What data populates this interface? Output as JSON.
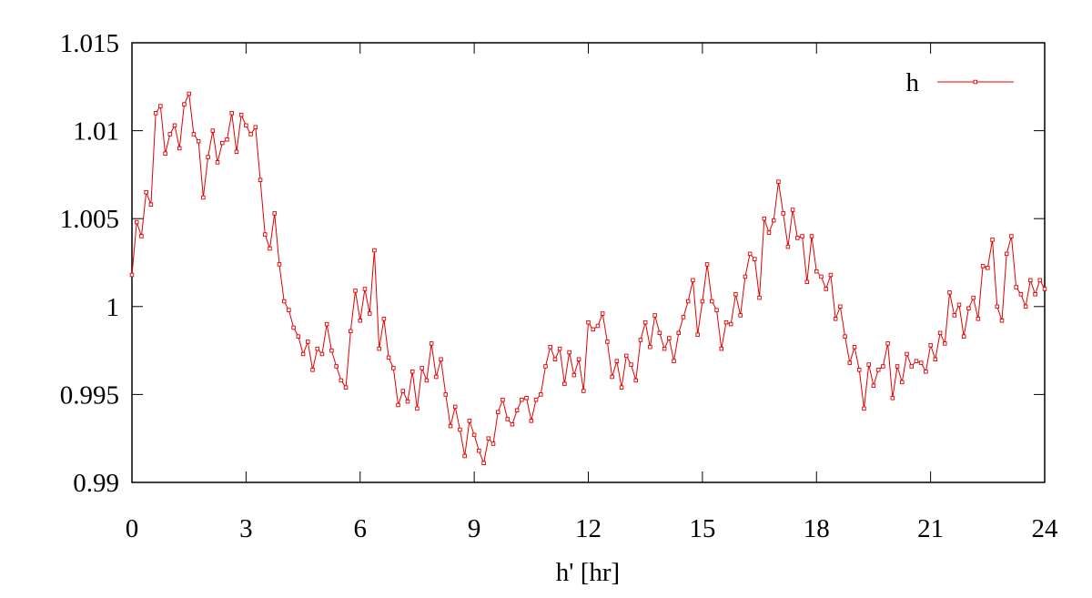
{
  "chart_data": {
    "type": "line",
    "xlabel": "h' [hr]",
    "x": [
      0,
      0.125,
      0.25,
      0.375,
      0.5,
      0.625,
      0.75,
      0.875,
      1,
      1.125,
      1.25,
      1.375,
      1.5,
      1.625,
      1.75,
      1.875,
      2,
      2.125,
      2.25,
      2.375,
      2.5,
      2.625,
      2.75,
      2.875,
      3,
      3.125,
      3.25,
      3.375,
      3.5,
      3.625,
      3.75,
      3.875,
      4,
      4.125,
      4.25,
      4.375,
      4.5,
      4.625,
      4.75,
      4.875,
      5,
      5.125,
      5.25,
      5.375,
      5.5,
      5.625,
      5.75,
      5.875,
      6,
      6.125,
      6.25,
      6.375,
      6.5,
      6.625,
      6.75,
      6.875,
      7,
      7.125,
      7.25,
      7.375,
      7.5,
      7.625,
      7.75,
      7.875,
      8,
      8.125,
      8.25,
      8.375,
      8.5,
      8.625,
      8.75,
      8.875,
      9,
      9.125,
      9.25,
      9.375,
      9.5,
      9.625,
      9.75,
      9.875,
      10,
      10.125,
      10.25,
      10.375,
      10.5,
      10.625,
      10.75,
      10.875,
      11,
      11.125,
      11.25,
      11.375,
      11.5,
      11.625,
      11.75,
      11.875,
      12,
      12.125,
      12.25,
      12.375,
      12.5,
      12.625,
      12.75,
      12.875,
      13,
      13.125,
      13.25,
      13.375,
      13.5,
      13.625,
      13.75,
      13.875,
      14,
      14.125,
      14.25,
      14.375,
      14.5,
      14.625,
      14.75,
      14.875,
      15,
      15.125,
      15.25,
      15.375,
      15.5,
      15.625,
      15.75,
      15.875,
      16,
      16.125,
      16.25,
      16.375,
      16.5,
      16.625,
      16.75,
      16.875,
      17,
      17.125,
      17.25,
      17.375,
      17.5,
      17.625,
      17.75,
      17.875,
      18,
      18.125,
      18.25,
      18.375,
      18.5,
      18.625,
      18.75,
      18.875,
      19,
      19.125,
      19.25,
      19.375,
      19.5,
      19.625,
      19.75,
      19.875,
      20,
      20.125,
      20.25,
      20.375,
      20.5,
      20.625,
      20.75,
      20.875,
      21,
      21.125,
      21.25,
      21.375,
      21.5,
      21.625,
      21.75,
      21.875,
      22,
      22.125,
      22.25,
      22.375,
      22.5,
      22.625,
      22.75,
      22.875,
      23,
      23.125,
      23.25,
      23.375,
      23.5,
      23.625,
      23.75,
      23.875,
      24
    ],
    "series": [
      {
        "name": "h",
        "color": "#e00000",
        "values": [
          1.0018,
          1.0048,
          1.004,
          1.0065,
          1.0058,
          1.011,
          1.0114,
          1.0087,
          1.0098,
          1.0103,
          1.009,
          1.0115,
          1.0121,
          1.0098,
          1.0094,
          1.0062,
          1.0085,
          1.01,
          1.0082,
          1.0093,
          1.0095,
          1.011,
          1.0088,
          1.0109,
          1.0103,
          1.0098,
          1.0102,
          1.0072,
          1.0041,
          1.0033,
          1.0053,
          1.0024,
          1.0003,
          0.9998,
          0.9988,
          0.9983,
          0.9973,
          0.998,
          0.9964,
          0.9976,
          0.9973,
          0.999,
          0.9975,
          0.9966,
          0.9958,
          0.9954,
          0.9986,
          1.0009,
          0.9992,
          1.001,
          0.9996,
          1.0032,
          0.9976,
          0.9993,
          0.9971,
          0.9965,
          0.9944,
          0.9952,
          0.9946,
          0.9963,
          0.9942,
          0.9965,
          0.9958,
          0.9979,
          0.996,
          0.997,
          0.995,
          0.9932,
          0.9943,
          0.993,
          0.9915,
          0.9935,
          0.9927,
          0.9918,
          0.9911,
          0.9925,
          0.9922,
          0.994,
          0.9947,
          0.9936,
          0.9933,
          0.9941,
          0.9947,
          0.9948,
          0.9935,
          0.9947,
          0.995,
          0.9966,
          0.9977,
          0.997,
          0.9976,
          0.9956,
          0.9974,
          0.9961,
          0.997,
          0.9952,
          0.9991,
          0.9987,
          0.9989,
          0.9996,
          0.998,
          0.996,
          0.9969,
          0.9954,
          0.9972,
          0.9967,
          0.9958,
          0.9981,
          0.9991,
          0.9977,
          0.9995,
          0.9985,
          0.9976,
          0.9982,
          0.9969,
          0.9985,
          0.9994,
          1.0003,
          1.0015,
          0.9984,
          1.0003,
          1.0024,
          1.0003,
          0.9998,
          0.9976,
          0.9991,
          0.999,
          1.0007,
          0.9995,
          1.0017,
          1.003,
          1.0027,
          1.0005,
          1.005,
          1.0042,
          1.0049,
          1.0071,
          1.0053,
          1.0034,
          1.0055,
          1.0039,
          1.004,
          1.0014,
          1.004,
          1.002,
          1.0017,
          1.001,
          1.0018,
          0.9993,
          1.0,
          0.9983,
          0.9968,
          0.9977,
          0.9964,
          0.9942,
          0.9967,
          0.9955,
          0.9964,
          0.9966,
          0.9979,
          0.9948,
          0.9966,
          0.9957,
          0.9973,
          0.9966,
          0.9969,
          0.9968,
          0.9963,
          0.9978,
          0.997,
          0.9985,
          0.9979,
          1.0008,
          0.9995,
          1.0001,
          0.9983,
          0.9999,
          1.0005,
          0.9993,
          1.0023,
          1.0022,
          1.0038,
          1.0,
          0.9992,
          1.003,
          1.004,
          1.0011,
          1.0007,
          1.0,
          1.0015,
          1.0007,
          1.0015,
          1.001
        ]
      }
    ],
    "xlim": [
      0,
      24
    ],
    "xticks": [
      0,
      3,
      6,
      9,
      12,
      15,
      18,
      21,
      24
    ],
    "ylim": [
      0.99,
      1.015
    ],
    "yticks": [
      0.99,
      0.995,
      1,
      1.005,
      1.01,
      1.015
    ],
    "legend": "top right",
    "markers": true
  }
}
